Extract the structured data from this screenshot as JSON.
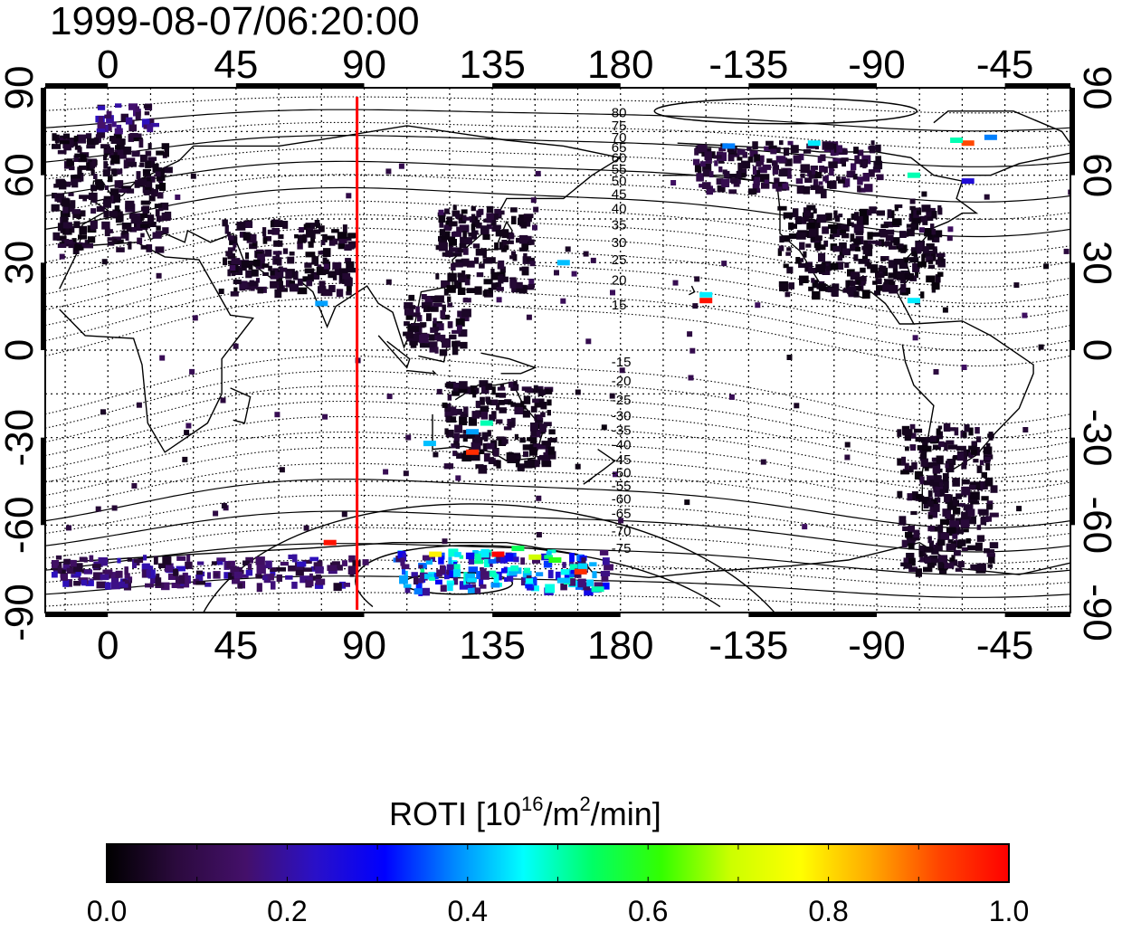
{
  "chart_data": {
    "type": "heatmap",
    "title": "1999-08-07/06:20:00",
    "x_axis": {
      "ticks": [
        "0",
        "45",
        "90",
        "135",
        "180",
        "-135",
        "-90",
        "-45"
      ],
      "tick_values_deg": [
        0,
        45,
        90,
        135,
        180,
        225,
        270,
        315
      ],
      "range_deg": [
        -22,
        338
      ],
      "label": ""
    },
    "y_axis": {
      "ticks": [
        "90",
        "60",
        "30",
        "0",
        "-30",
        "-60",
        "-90"
      ],
      "tick_values_deg": [
        90,
        60,
        30,
        0,
        -30,
        -60,
        -90
      ],
      "range_deg": [
        -90,
        90
      ],
      "label": ""
    },
    "grid": true,
    "marker_meridian": {
      "lon": 87.5,
      "color": "#ff0000"
    },
    "magnetic_latitude_labels": {
      "north": [
        {
          "text": "80",
          "lat": 81.5
        },
        {
          "text": "75",
          "lat": 77
        },
        {
          "text": "70",
          "lat": 73
        },
        {
          "text": "65",
          "lat": 69.5
        },
        {
          "text": "60",
          "lat": 66
        },
        {
          "text": "55",
          "lat": 62
        },
        {
          "text": "50",
          "lat": 58
        },
        {
          "text": "45",
          "lat": 53.5
        },
        {
          "text": "40",
          "lat": 48.5
        },
        {
          "text": "35",
          "lat": 43
        },
        {
          "text": "30",
          "lat": 37
        },
        {
          "text": "25",
          "lat": 31
        },
        {
          "text": "20",
          "lat": 24
        },
        {
          "text": "15",
          "lat": 15.5
        }
      ],
      "south": [
        {
          "text": "-15",
          "lat": -4
        },
        {
          "text": "-20",
          "lat": -10.5
        },
        {
          "text": "-25",
          "lat": -17
        },
        {
          "text": "-30",
          "lat": -22.5
        },
        {
          "text": "-35",
          "lat": -27.5
        },
        {
          "text": "-40",
          "lat": -32.5
        },
        {
          "text": "-45",
          "lat": -37.5
        },
        {
          "text": "-50",
          "lat": -42
        },
        {
          "text": "-55",
          "lat": -46.5
        },
        {
          "text": "-60",
          "lat": -51
        },
        {
          "text": "-65",
          "lat": -56
        },
        {
          "text": "-70",
          "lat": -62
        },
        {
          "text": "-75",
          "lat": -68
        }
      ]
    },
    "roti_clusters": [
      {
        "lon": [
          -20,
          20
        ],
        "lat": [
          35,
          75
        ],
        "roti": 0.05
      },
      {
        "lon": [
          -5,
          15
        ],
        "lat": [
          75,
          85
        ],
        "roti": 0.15
      },
      {
        "lon": [
          115,
          148
        ],
        "lat": [
          20,
          50
        ],
        "roti": 0.05
      },
      {
        "lon": [
          103,
          125
        ],
        "lat": [
          0,
          20
        ],
        "roti": 0.06
      },
      {
        "lon": [
          118,
          155
        ],
        "lat": [
          -40,
          -10
        ],
        "roti": 0.05
      },
      {
        "lon": [
          235,
          292
        ],
        "lat": [
          20,
          50
        ],
        "roti": 0.04
      },
      {
        "lon": [
          205,
          270
        ],
        "lat": [
          55,
          72
        ],
        "roti": 0.08
      },
      {
        "lon": [
          277,
          310
        ],
        "lat": [
          -75,
          -25
        ],
        "roti": 0.05
      },
      {
        "lon": [
          40,
          85
        ],
        "lat": [
          20,
          45
        ],
        "roti": 0.05
      },
      {
        "lon": [
          -20,
          90
        ],
        "lat": [
          -80,
          -70
        ],
        "roti": 0.15
      },
      {
        "lon": [
          100,
          175
        ],
        "lat": [
          -82,
          -68
        ],
        "roti": 0.35
      }
    ],
    "roti_hotspots": [
      {
        "lon": 137,
        "lat": -70,
        "roti": 1.0
      },
      {
        "lon": 166,
        "lat": -76,
        "roti": 0.95
      },
      {
        "lon": 144,
        "lat": -68,
        "roti": 0.55
      },
      {
        "lon": 150,
        "lat": -71,
        "roti": 0.7
      },
      {
        "lon": 157,
        "lat": -72,
        "roti": 0.6
      },
      {
        "lon": 172,
        "lat": -82,
        "roti": 0.5
      },
      {
        "lon": 160,
        "lat": -79,
        "roti": 0.42
      },
      {
        "lon": 115,
        "lat": -70,
        "roti": 0.78
      },
      {
        "lon": 78,
        "lat": -66,
        "roti": 0.98
      },
      {
        "lon": 210,
        "lat": 17,
        "roti": 0.98
      },
      {
        "lon": 210,
        "lat": 19,
        "roti": 0.45
      },
      {
        "lon": 302,
        "lat": 71,
        "roti": 0.92
      },
      {
        "lon": 298,
        "lat": 72,
        "roti": 0.5
      },
      {
        "lon": 310,
        "lat": 73,
        "roti": 0.38
      },
      {
        "lon": 128,
        "lat": -35,
        "roti": 0.95
      },
      {
        "lon": 133,
        "lat": -25,
        "roti": 0.5
      },
      {
        "lon": 128,
        "lat": -28,
        "roti": 0.4
      },
      {
        "lon": 113,
        "lat": -32,
        "roti": 0.42
      },
      {
        "lon": 218,
        "lat": 70,
        "roti": 0.38
      },
      {
        "lon": 248,
        "lat": 71,
        "roti": 0.45
      },
      {
        "lon": 283,
        "lat": 60,
        "roti": 0.5
      },
      {
        "lon": 302,
        "lat": 58,
        "roti": 0.25
      },
      {
        "lon": 75,
        "lat": 16,
        "roti": 0.4
      },
      {
        "lon": 283,
        "lat": 17,
        "roti": 0.45
      },
      {
        "lon": 160,
        "lat": 30,
        "roti": 0.42
      }
    ],
    "colorbar": {
      "label_main": "ROTI  [10",
      "label_sup1": "16",
      "label_mid": "/m",
      "label_sup2": "2",
      "label_end": "/min]",
      "range": [
        0.0,
        1.0
      ],
      "ticks": [
        "0.0",
        "0.2",
        "0.4",
        "0.6",
        "0.8",
        "1.0"
      ],
      "tick_values": [
        0.0,
        0.2,
        0.4,
        0.6,
        0.8,
        1.0
      ],
      "colormap": [
        "#000000",
        "#2b0a3d",
        "#44106a",
        "#2a10c8",
        "#0000ff",
        "#0088ff",
        "#00ffff",
        "#00ff66",
        "#33ff00",
        "#ccff00",
        "#ffff00",
        "#ffaa00",
        "#ff4400",
        "#ff0000"
      ]
    }
  }
}
